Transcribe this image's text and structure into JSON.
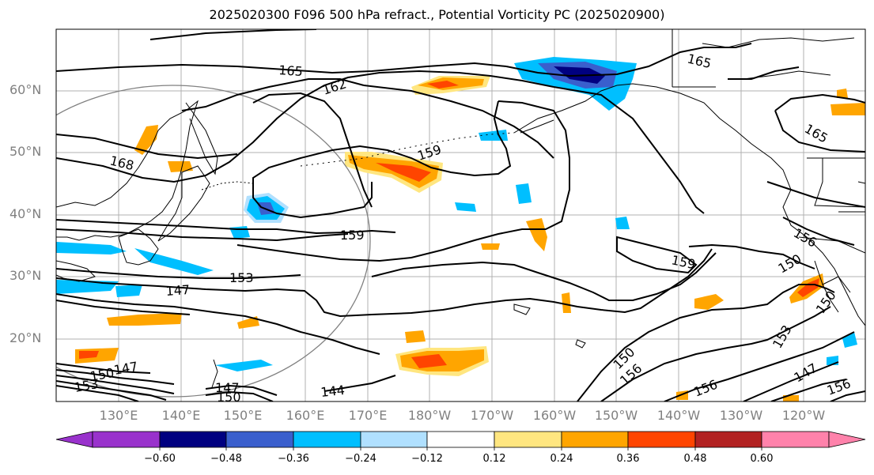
{
  "title": "2025020300 F096 500 hPa refract., Potential Vorticity PC (2025020900)",
  "lat_labels": [
    "60°N",
    "50°N",
    "40°N",
    "30°N",
    "20°N"
  ],
  "lon_labels": [
    "130°E",
    "140°E",
    "150°E",
    "160°E",
    "170°E",
    "180°W",
    "170°W",
    "160°W",
    "150°W",
    "140°W",
    "130°W",
    "120°W"
  ],
  "contour_labels": [
    "165",
    "162",
    "168",
    "159",
    "159",
    "156",
    "150",
    "165",
    "159",
    "153",
    "147",
    "150",
    "153",
    "156",
    "150",
    "147",
    "156",
    "144",
    "147",
    "150",
    "153",
    "147",
    "150",
    "156",
    "165",
    "156",
    "153",
    "147",
    "150",
    "156"
  ],
  "colorbar": {
    "ticks": [
      "−0.60",
      "−0.48",
      "−0.36",
      "−0.24",
      "−0.12",
      "0.12",
      "0.24",
      "0.36",
      "0.48",
      "0.60"
    ],
    "colors": [
      "#9932cc",
      "#000080",
      "#3a5fcd",
      "#00bfff",
      "#b0e0ff",
      "#ffffff",
      "#ffe680",
      "#ffa500",
      "#ff4500",
      "#b22222",
      "#ff82ab"
    ]
  },
  "legend_colors": {
    "neg_strong": "#000080",
    "neg_mid": "#3a5fcd",
    "neg_light": "#00bfff",
    "neg_pale": "#b0e0ff",
    "pos_pale": "#ffe680",
    "pos_mid": "#ffa500",
    "pos_strong": "#ff4500",
    "pos_dark": "#b22222"
  }
}
